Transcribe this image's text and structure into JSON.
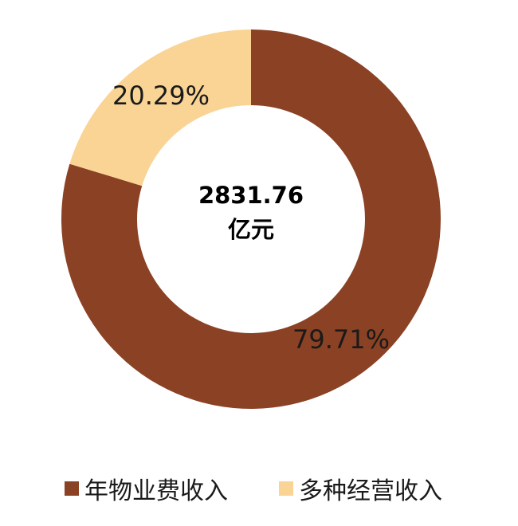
{
  "chart_data": {
    "type": "pie",
    "categories": [
      "年物业费收入",
      "多种经营收入"
    ],
    "values": [
      79.71,
      20.29
    ],
    "labels": [
      "79.71%",
      "20.29%"
    ],
    "colors": [
      "#8b4124",
      "#fad494"
    ],
    "center_text": [
      "2831.76",
      "亿元"
    ],
    "legend": {
      "placement": "bottom",
      "entries": [
        "年物业费收入",
        "多种经营收入"
      ]
    }
  }
}
